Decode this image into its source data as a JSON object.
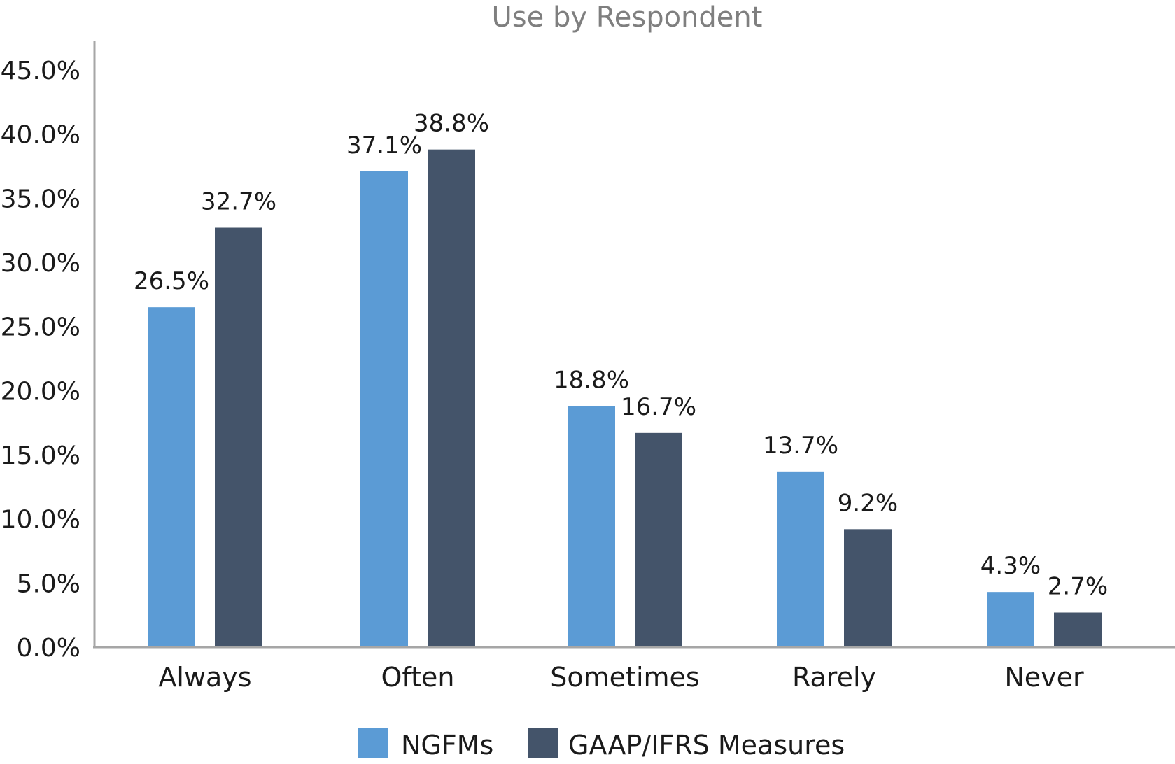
{
  "chart_data": {
    "type": "bar",
    "title": "Use by Respondent",
    "xlabel": "",
    "ylabel": "",
    "categories": [
      "Always",
      "Often",
      "Sometimes",
      "Rarely",
      "Never"
    ],
    "series": [
      {
        "name": "NGFMs",
        "color": "#5b9bd5",
        "values": [
          26.5,
          37.1,
          18.8,
          13.7,
          4.3
        ],
        "labels": [
          "26.5%",
          "37.1%",
          "18.8%",
          "13.7%",
          "4.3%"
        ]
      },
      {
        "name": "GAAP/IFRS Measures",
        "color": "#44546a",
        "values": [
          32.7,
          38.8,
          16.7,
          9.2,
          2.7
        ],
        "labels": [
          "32.7%",
          "38.8%",
          "16.7%",
          "9.2%",
          "2.7%"
        ]
      }
    ],
    "ylim": [
      0,
      45
    ],
    "y_ticks": [
      "0.0%",
      "5.0%",
      "10.0%",
      "15.0%",
      "20.0%",
      "25.0%",
      "30.0%",
      "35.0%",
      "40.0%",
      "45.0%"
    ],
    "y_tick_values": [
      0,
      5,
      10,
      15,
      20,
      25,
      30,
      35,
      40,
      45
    ],
    "grid": false,
    "legend_position": "bottom",
    "axis_color": "#a6a6a6"
  }
}
